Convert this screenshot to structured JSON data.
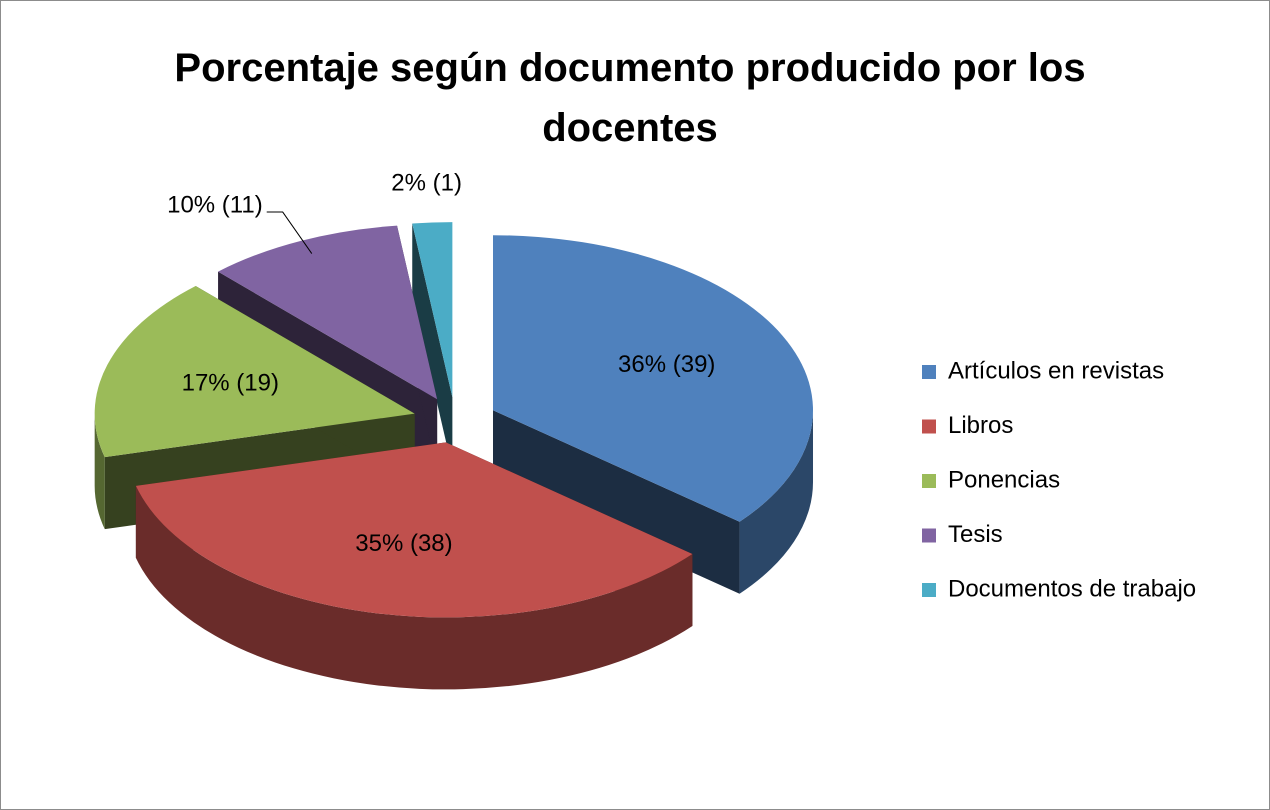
{
  "chart_data": {
    "type": "pie",
    "title": "Porcentaje según documento producido por los docentes",
    "categories": [
      "Artículos en revistas",
      "Libros",
      "Ponencias",
      "Tesis",
      "Documentos de trabajo"
    ],
    "values": [
      36,
      35,
      17,
      10,
      2
    ],
    "counts": [
      39,
      38,
      19,
      11,
      1
    ],
    "value_labels": [
      "36% (39)",
      "35% (38)",
      "17% (19)",
      "10% (11)",
      "2% (1)"
    ],
    "colors": [
      "#4f81bd",
      "#c0504d",
      "#9bbb59",
      "#8064a2",
      "#4bacc6"
    ],
    "legend": "right"
  }
}
